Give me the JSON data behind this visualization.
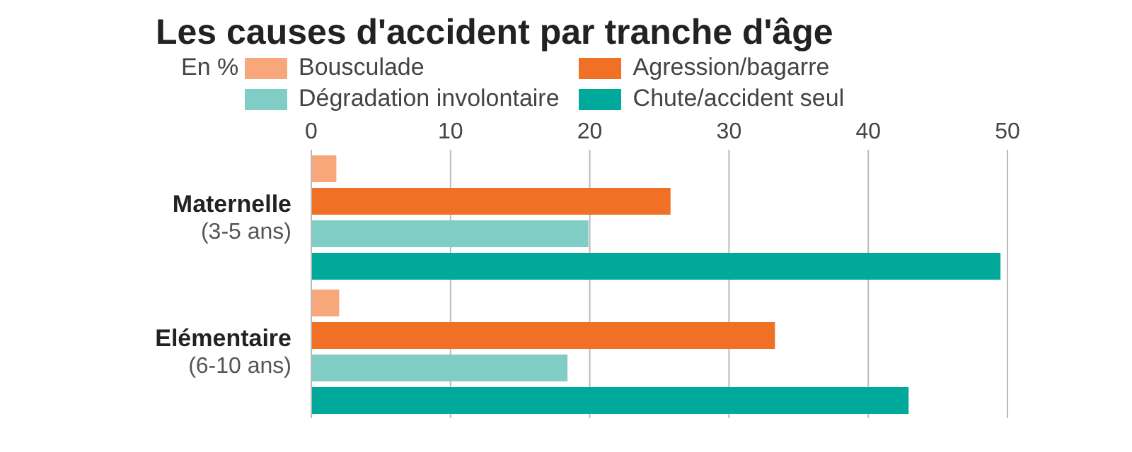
{
  "chart_data": {
    "type": "bar",
    "orientation": "horizontal",
    "title": "Les causes d'accident par tranche d'âge",
    "legend_title": "En %",
    "categories": [
      "Maternelle\n(3-5 ans)",
      "Elémentaire\n(6-10 ans)"
    ],
    "series": [
      {
        "name": "Bousculade",
        "color": "#f7a77a",
        "values": [
          1.8,
          2.0
        ]
      },
      {
        "name": "Agression/bagarre",
        "color": "#f07025",
        "values": [
          25.8,
          33.3
        ]
      },
      {
        "name": "Dégradation involontaire",
        "color": "#7fcdc4",
        "values": [
          19.9,
          18.4
        ]
      },
      {
        "name": "Chute/accident seul",
        "color": "#00a99a",
        "values": [
          49.5,
          42.9
        ]
      }
    ],
    "xlim": [
      0,
      50
    ],
    "xticks": [
      0,
      10,
      20,
      30,
      40,
      50
    ],
    "grid": "x",
    "legend": "top"
  }
}
